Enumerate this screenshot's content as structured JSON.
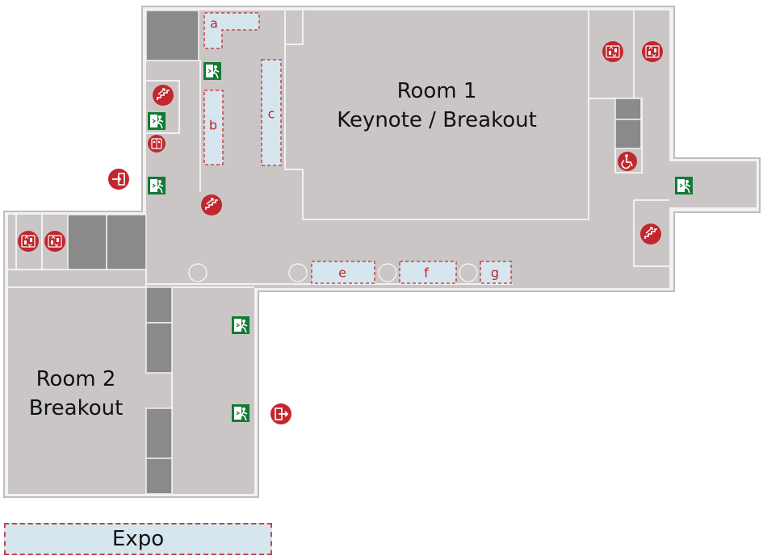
{
  "rooms": {
    "room1": {
      "name": "Room 1",
      "subtitle": "Keynote / Breakout"
    },
    "room2": {
      "name": "Room 2",
      "subtitle": "Breakout"
    }
  },
  "booths": {
    "a": "a",
    "b": "b",
    "c": "c",
    "e": "e",
    "f": "f",
    "g": "g"
  },
  "legend": {
    "expo_label": "Expo"
  },
  "icons": {
    "exit_sign": "emergency-exit-icon",
    "elevator": "elevator-icon",
    "stairs": "stairs-icon",
    "restroom": "restroom-icon",
    "wheelchair": "wheelchair-accessible-icon",
    "entrance": "entrance-icon",
    "exit_door": "exit-icon"
  },
  "colors": {
    "floor": "#cbc6c6",
    "wall": "#f2f0f0",
    "outline": "#bdbdbd",
    "core": "#8a8a8a",
    "booth_fill": "#d6e6ef",
    "booth_border": "#c8434a",
    "accent_red": "#c1272d",
    "exit_green": "#137a34"
  }
}
